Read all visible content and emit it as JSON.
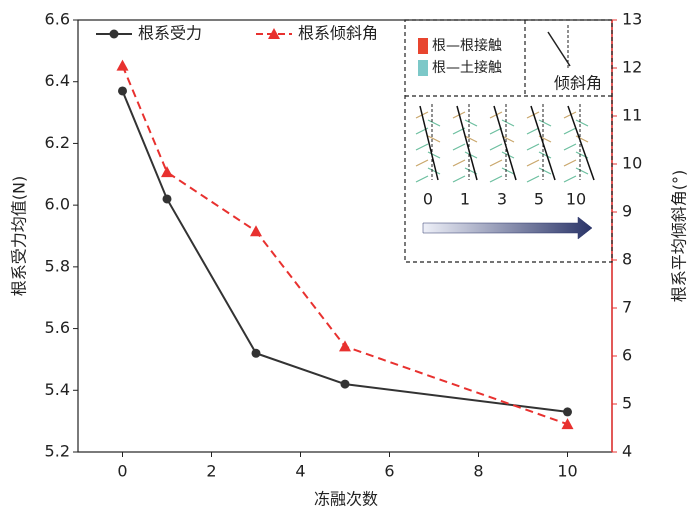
{
  "chart_data": {
    "type": "line",
    "x_label": "冻融次数",
    "y_label": "根系受力均值(N)",
    "y2_label": "根系平均倾斜角(°)",
    "x": [
      0,
      1,
      3,
      5,
      10
    ],
    "series": [
      {
        "name": "根系受力",
        "color": "#333333",
        "marker": "circle",
        "dashed": false,
        "values": [
          6.37,
          6.02,
          5.52,
          5.42,
          5.33
        ]
      },
      {
        "name": "根系倾斜角",
        "color": "#e8312f",
        "marker": "triangle",
        "dashed": true,
        "axis": "y2",
        "values": [
          12.05,
          9.83,
          8.6,
          6.2,
          4.58
        ]
      }
    ],
    "xlim": [
      -1,
      11
    ],
    "xticks": [
      0,
      2,
      4,
      6,
      8,
      10
    ],
    "ylim": [
      5.2,
      6.6
    ],
    "yticks": [
      5.2,
      5.4,
      5.6,
      5.8,
      {
        "value": 6.0,
        "label": "6.0"
      },
      6.2,
      6.4,
      6.6
    ],
    "y2lim": [
      4,
      13
    ],
    "y2ticks": [
      4,
      5,
      6,
      7,
      8,
      9,
      10,
      11,
      12,
      13
    ],
    "legend": "upper left",
    "inset": {
      "legend": [
        {
          "label": "根—根接触",
          "color": "#e8452f"
        },
        {
          "label": "根—土接触",
          "color": "#7cc8c8"
        }
      ],
      "angle_label": "倾斜角",
      "labels": [
        0,
        1,
        3,
        5,
        10
      ]
    }
  }
}
